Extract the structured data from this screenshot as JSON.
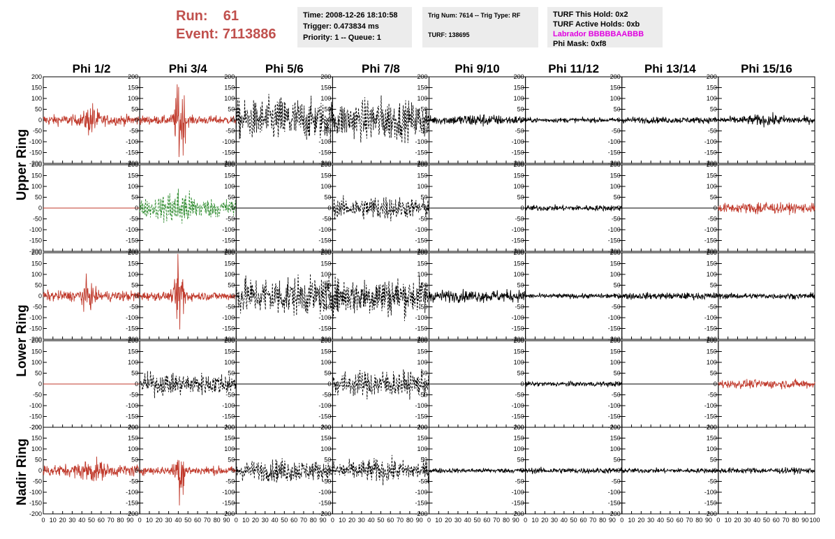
{
  "header": {
    "run_label": "Run:",
    "run_value": "61",
    "event_label": "Event:",
    "event_value": "7113886"
  },
  "info_time": {
    "time": "Time: 2008-12-26 18:10:58",
    "trigger": "Trigger: 0.473834 ms",
    "priority": "Priority: 1 -- Queue: 1"
  },
  "info_trig": {
    "trig": "Trig Num: 7614 -- Trig Type: RF",
    "turf": "TURF: 138695"
  },
  "info_turf": {
    "hold": "TURF This Hold: 0x2",
    "active": "TURF Active Holds: 0xb",
    "labrador": "Labrador BBBBBAABBB",
    "mask": "Phi Mask: 0xf8"
  },
  "colors": {
    "red": "#c0392b",
    "green": "#2e8b2e",
    "black": "#000000",
    "run_text": "#c0504d",
    "magenta": "#e000e0"
  },
  "chart_data": {
    "type": "line",
    "columns": [
      "Phi 1/2",
      "Phi 3/4",
      "Phi 5/6",
      "Phi 7/8",
      "Phi 9/10",
      "Phi 11/12",
      "Phi 13/14",
      "Phi 15/16"
    ],
    "ring_labels": [
      "Upper Ring",
      "Lower Ring",
      "Nadir Ring"
    ],
    "y_ticks": [
      200,
      150,
      100,
      50,
      0,
      -50,
      -100,
      -150,
      -200
    ],
    "x_ticks": [
      0,
      10,
      20,
      30,
      40,
      50,
      60,
      70,
      80,
      90,
      100
    ],
    "x_range": [
      0,
      100
    ],
    "y_range": [
      -200,
      200
    ],
    "rows": [
      [
        {
          "color": "red",
          "style": "solid",
          "amp": 22,
          "burst": 55,
          "center": 50,
          "spread": 7
        },
        {
          "color": "red",
          "style": "solid",
          "amp": 18,
          "burst": 190,
          "center": 42,
          "spread": 5
        },
        {
          "color": "black",
          "style": "dashed",
          "amp": 80,
          "burst": 20,
          "center": 50,
          "spread": 20
        },
        {
          "color": "black",
          "style": "dashed",
          "amp": 75,
          "burst": 20,
          "center": 50,
          "spread": 20
        },
        {
          "color": "black",
          "style": "solid",
          "amp": 18,
          "burst": 10,
          "center": 50,
          "spread": 20
        },
        {
          "color": "black",
          "style": "solid",
          "amp": 10,
          "burst": 0,
          "center": 50,
          "spread": 20
        },
        {
          "color": "black",
          "style": "solid",
          "amp": 13,
          "burst": 0,
          "center": 50,
          "spread": 20
        },
        {
          "color": "black",
          "style": "solid",
          "amp": 15,
          "burst": 10,
          "center": 50,
          "spread": 20
        }
      ],
      [
        {
          "color": "red",
          "style": "flat",
          "amp": 0,
          "burst": 0,
          "center": 50,
          "spread": 20
        },
        {
          "color": "green",
          "style": "dashed",
          "amp": 40,
          "burst": 50,
          "center": 40,
          "spread": 15
        },
        {
          "color": "black",
          "style": "flat",
          "amp": 0,
          "burst": 0,
          "center": 50,
          "spread": 20
        },
        {
          "color": "black",
          "style": "dashed",
          "amp": 40,
          "burst": 15,
          "center": 50,
          "spread": 20
        },
        {
          "color": "black",
          "style": "flat",
          "amp": 0,
          "burst": 0,
          "center": 50,
          "spread": 20
        },
        {
          "color": "black",
          "style": "solid",
          "amp": 12,
          "burst": 0,
          "center": 50,
          "spread": 20
        },
        {
          "color": "black",
          "style": "flat",
          "amp": 0,
          "burst": 0,
          "center": 50,
          "spread": 20
        },
        {
          "color": "red",
          "style": "solid",
          "amp": 20,
          "burst": 15,
          "center": 45,
          "spread": 10
        }
      ],
      [
        {
          "color": "red",
          "style": "solid",
          "amp": 22,
          "burst": 45,
          "center": 45,
          "spread": 7
        },
        {
          "color": "red",
          "style": "solid",
          "amp": 18,
          "burst": 150,
          "center": 42,
          "spread": 5
        },
        {
          "color": "black",
          "style": "dashed",
          "amp": 75,
          "burst": 10,
          "center": 50,
          "spread": 20
        },
        {
          "color": "black",
          "style": "dashed",
          "amp": 75,
          "burst": 10,
          "center": 50,
          "spread": 20
        },
        {
          "color": "black",
          "style": "solid",
          "amp": 25,
          "burst": 0,
          "center": 50,
          "spread": 20
        },
        {
          "color": "black",
          "style": "solid",
          "amp": 10,
          "burst": 0,
          "center": 50,
          "spread": 20
        },
        {
          "color": "black",
          "style": "solid",
          "amp": 14,
          "burst": 0,
          "center": 50,
          "spread": 20
        },
        {
          "color": "black",
          "style": "solid",
          "amp": 12,
          "burst": 0,
          "center": 50,
          "spread": 20
        }
      ],
      [
        {
          "color": "red",
          "style": "flat",
          "amp": 0,
          "burst": 0,
          "center": 50,
          "spread": 20
        },
        {
          "color": "black",
          "style": "dashed",
          "amp": 45,
          "burst": 0,
          "center": 50,
          "spread": 20
        },
        {
          "color": "black",
          "style": "flat",
          "amp": 0,
          "burst": 0,
          "center": 50,
          "spread": 20
        },
        {
          "color": "black",
          "style": "dashed",
          "amp": 50,
          "burst": 10,
          "center": 50,
          "spread": 20
        },
        {
          "color": "black",
          "style": "flat",
          "amp": 0,
          "burst": 0,
          "center": 50,
          "spread": 20
        },
        {
          "color": "black",
          "style": "solid",
          "amp": 10,
          "burst": 0,
          "center": 50,
          "spread": 20
        },
        {
          "color": "black",
          "style": "flat",
          "amp": 0,
          "burst": 0,
          "center": 50,
          "spread": 20
        },
        {
          "color": "red",
          "style": "solid",
          "amp": 18,
          "burst": 0,
          "center": 50,
          "spread": 20
        }
      ],
      [
        {
          "color": "red",
          "style": "solid",
          "amp": 25,
          "burst": 30,
          "center": 50,
          "spread": 12
        },
        {
          "color": "red",
          "style": "solid",
          "amp": 18,
          "burst": 110,
          "center": 42,
          "spread": 5
        },
        {
          "color": "black",
          "style": "dashed",
          "amp": 40,
          "burst": 10,
          "center": 50,
          "spread": 20
        },
        {
          "color": "black",
          "style": "dashed",
          "amp": 40,
          "burst": 10,
          "center": 50,
          "spread": 20
        },
        {
          "color": "black",
          "style": "solid",
          "amp": 10,
          "burst": 0,
          "center": 50,
          "spread": 20
        },
        {
          "color": "black",
          "style": "solid",
          "amp": 12,
          "burst": 0,
          "center": 50,
          "spread": 20
        },
        {
          "color": "black",
          "style": "solid",
          "amp": 10,
          "burst": 0,
          "center": 50,
          "spread": 20
        },
        {
          "color": "black",
          "style": "solid",
          "amp": 12,
          "burst": 0,
          "center": 50,
          "spread": 20
        }
      ]
    ]
  }
}
